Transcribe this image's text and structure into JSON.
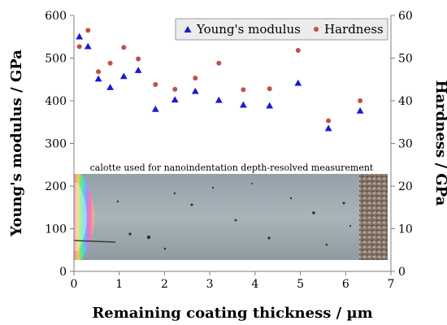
{
  "chart_data": {
    "type": "scatter",
    "title": "",
    "xlabel": "Remaining coating thickness / µm",
    "ylabel_left": "Young's modulus / GPa",
    "ylabel_right": "Hardness / GPa",
    "xlim": [
      0,
      7
    ],
    "ylim_left": [
      0,
      600
    ],
    "ylim_right": [
      0,
      60
    ],
    "x_ticks": [
      "0",
      "1",
      "2",
      "3",
      "4",
      "5",
      "6",
      "7"
    ],
    "y_left_ticks": [
      "0",
      "100",
      "200",
      "300",
      "400",
      "500",
      "600"
    ],
    "y_right_ticks": [
      "0",
      "10",
      "20",
      "30",
      "40",
      "50",
      "60"
    ],
    "grid": false,
    "legend_position": "top-right",
    "annotation": "calotte used for nanoindentation depth-resolved measurement",
    "series": [
      {
        "name": "Young's modulus",
        "axis": "left",
        "marker": "triangle",
        "color": "#1a1ad0",
        "points": [
          [
            0.12,
            550
          ],
          [
            0.31,
            527
          ],
          [
            0.54,
            451
          ],
          [
            0.8,
            431
          ],
          [
            1.1,
            457
          ],
          [
            1.42,
            471
          ],
          [
            1.8,
            380
          ],
          [
            2.23,
            402
          ],
          [
            2.68,
            422
          ],
          [
            3.2,
            401
          ],
          [
            3.74,
            390
          ],
          [
            4.32,
            388
          ],
          [
            4.95,
            441
          ],
          [
            5.62,
            335
          ],
          [
            6.32,
            376
          ]
        ]
      },
      {
        "name": "Hardness",
        "axis": "right",
        "marker": "circle",
        "color": "#c0504d",
        "points": [
          [
            0.12,
            52.7
          ],
          [
            0.31,
            56.5
          ],
          [
            0.54,
            46.8
          ],
          [
            0.8,
            48.8
          ],
          [
            1.1,
            52.5
          ],
          [
            1.42,
            49.8
          ],
          [
            1.8,
            43.8
          ],
          [
            2.23,
            42.7
          ],
          [
            2.68,
            45.3
          ],
          [
            3.2,
            48.8
          ],
          [
            3.74,
            42.6
          ],
          [
            4.32,
            42.8
          ],
          [
            4.95,
            51.8
          ],
          [
            5.62,
            35.3
          ],
          [
            6.32,
            40.0
          ]
        ]
      }
    ]
  }
}
